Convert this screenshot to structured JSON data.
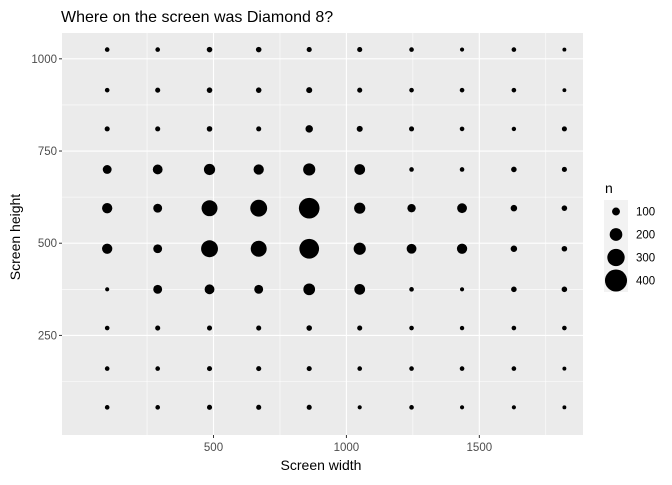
{
  "chart_data": {
    "type": "scatter",
    "title": "Where on the screen was Diamond 8?",
    "xlabel": "Screen width",
    "ylabel": "Screen height",
    "xlim": [
      -70,
      1890
    ],
    "ylim": [
      -20,
      1070
    ],
    "x_ticks": [
      500,
      1000,
      1500
    ],
    "y_ticks": [
      250,
      500,
      750,
      1000
    ],
    "grid": true,
    "panel_background": "#ebebeb",
    "point_color": "#000000",
    "x_positions": [
      100,
      290,
      485,
      670,
      860,
      1050,
      1245,
      1435,
      1630,
      1820
    ],
    "y_positions": [
      55,
      160,
      270,
      375,
      485,
      595,
      700,
      810,
      915,
      1025
    ],
    "counts": [
      [
        30,
        30,
        40,
        40,
        40,
        20,
        30,
        20,
        20,
        15
      ],
      [
        30,
        30,
        40,
        40,
        40,
        30,
        30,
        30,
        30,
        15
      ],
      [
        30,
        40,
        40,
        40,
        50,
        40,
        30,
        25,
        30,
        30
      ],
      [
        20,
        120,
        140,
        120,
        180,
        160,
        30,
        20,
        50,
        50
      ],
      [
        150,
        120,
        290,
        270,
        350,
        190,
        140,
        150,
        70,
        50
      ],
      [
        150,
        120,
        270,
        290,
        370,
        170,
        110,
        140,
        70,
        50
      ],
      [
        120,
        140,
        170,
        150,
        190,
        160,
        30,
        30,
        50,
        40
      ],
      [
        40,
        40,
        50,
        40,
        90,
        60,
        40,
        30,
        25,
        40
      ],
      [
        30,
        40,
        50,
        50,
        60,
        40,
        30,
        30,
        30,
        15
      ],
      [
        30,
        30,
        50,
        50,
        40,
        40,
        30,
        20,
        30,
        15
      ]
    ],
    "legend": {
      "title": "n",
      "position": "right",
      "values": [
        100,
        200,
        300,
        400
      ],
      "labels": [
        "100",
        "200",
        "300",
        "400"
      ]
    }
  }
}
